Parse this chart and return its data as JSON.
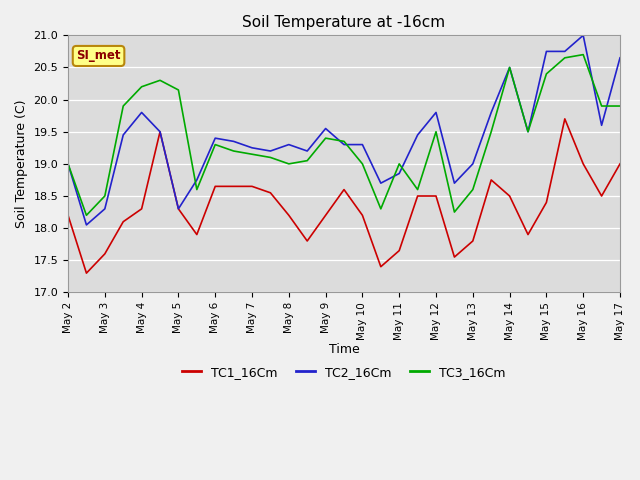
{
  "title": "Soil Temperature at -16cm",
  "xlabel": "Time",
  "ylabel": "Soil Temperature (C)",
  "ylim": [
    17.0,
    21.0
  ],
  "xlim_days": 15,
  "x_tick_labels": [
    "May 2",
    "May 3",
    "May 4",
    "May 5",
    "May 6",
    "May 7",
    "May 8",
    "May 9",
    "May 10",
    "May 11",
    "May 12",
    "May 13",
    "May 14",
    "May 15",
    "May 16",
    "May 17"
  ],
  "legend_label": "SI_met",
  "plot_bg_color": "#dcdcdc",
  "fig_bg_color": "#f0f0f0",
  "line_colors": [
    "#cc0000",
    "#2222cc",
    "#00aa00"
  ],
  "line_labels": [
    "TC1_16Cm",
    "TC2_16Cm",
    "TC3_16Cm"
  ],
  "TC1_x": [
    0,
    0.5,
    1,
    1.5,
    2,
    2.5,
    3,
    3.5,
    4,
    4.5,
    5,
    5.5,
    6,
    6.5,
    7,
    7.5,
    8,
    8.5,
    9,
    9.5,
    10,
    10.5,
    11,
    11.5,
    12,
    12.5,
    13,
    13.5,
    14,
    14.5,
    15
  ],
  "TC1_y": [
    18.2,
    17.3,
    17.6,
    18.1,
    18.3,
    19.5,
    18.3,
    17.9,
    18.65,
    18.65,
    18.65,
    18.55,
    18.2,
    17.8,
    18.2,
    18.6,
    18.2,
    17.4,
    17.65,
    18.5,
    18.5,
    17.55,
    17.8,
    18.75,
    18.5,
    17.9,
    18.4,
    19.7,
    19.0,
    18.5,
    19.0
  ],
  "TC2_x": [
    0,
    0.5,
    1,
    1.5,
    2,
    2.5,
    3,
    3.5,
    4,
    4.5,
    5,
    5.5,
    6,
    6.5,
    7,
    7.5,
    8,
    8.5,
    9,
    9.5,
    10,
    10.5,
    11,
    11.5,
    12,
    12.5,
    13,
    13.5,
    14,
    14.5,
    15
  ],
  "TC2_y": [
    19.0,
    18.05,
    18.3,
    19.45,
    19.8,
    19.5,
    18.3,
    18.75,
    19.4,
    19.35,
    19.25,
    19.2,
    19.3,
    19.2,
    19.55,
    19.3,
    19.3,
    18.7,
    18.85,
    19.45,
    19.8,
    18.7,
    19.0,
    19.8,
    20.5,
    19.5,
    20.75,
    20.75,
    21.0,
    19.6,
    20.65
  ],
  "TC3_x": [
    0,
    0.5,
    1,
    1.5,
    2,
    2.5,
    3,
    3.5,
    4,
    4.5,
    5,
    5.5,
    6,
    6.5,
    7,
    7.5,
    8,
    8.5,
    9,
    9.5,
    10,
    10.5,
    11,
    11.5,
    12,
    12.5,
    13,
    13.5,
    14,
    14.5,
    15
  ],
  "TC3_y": [
    19.0,
    18.2,
    18.5,
    19.9,
    20.2,
    20.3,
    20.15,
    18.6,
    19.3,
    19.2,
    19.15,
    19.1,
    19.0,
    19.05,
    19.4,
    19.35,
    19.0,
    18.3,
    19.0,
    18.6,
    19.5,
    18.25,
    18.6,
    19.5,
    20.5,
    19.5,
    20.4,
    20.65,
    20.7,
    19.9,
    19.9
  ]
}
